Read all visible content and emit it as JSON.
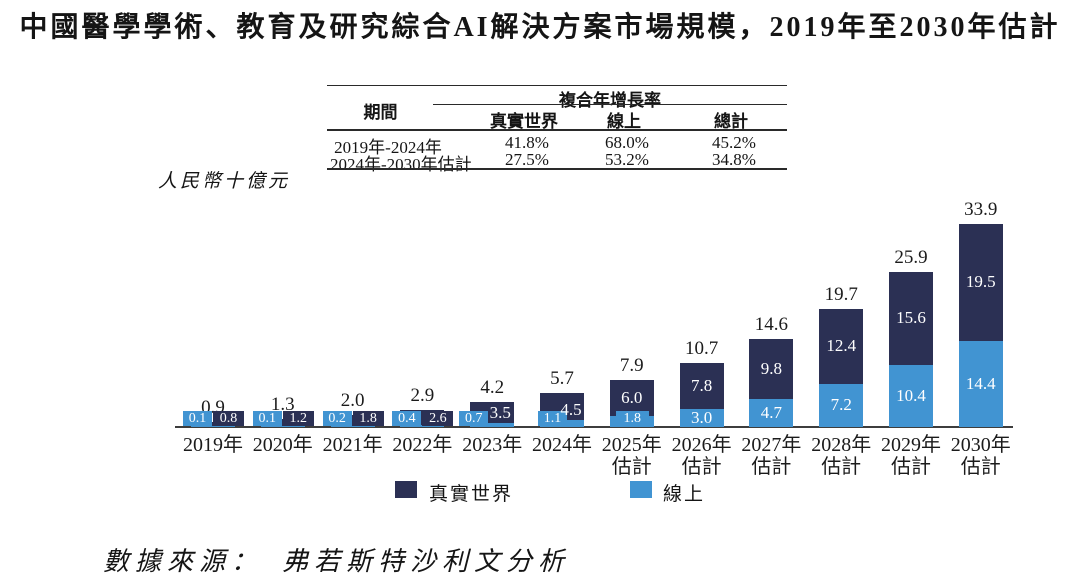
{
  "title": "中國醫學學術、教育及研究綜合AI解決方案市場規模，2019年至2030年估計",
  "table": {
    "period_header": "期間",
    "cagr_header": "複合年增長率",
    "col_headers": [
      "真實世界",
      "線上",
      "總計"
    ],
    "rows": [
      {
        "period": "2019年-2024年",
        "values": [
          "41.8%",
          "68.0%",
          "45.2%"
        ]
      },
      {
        "period": "2024年-2030年估計",
        "values": [
          "27.5%",
          "53.2%",
          "34.8%"
        ]
      }
    ]
  },
  "chart_data": {
    "type": "bar",
    "subtype": "stacked-bar",
    "unit_label": "人民幣十億元",
    "categories": [
      "2019年",
      "2020年",
      "2021年",
      "2022年",
      "2023年",
      "2024年",
      "2025年",
      "2026年",
      "2027年",
      "2028年",
      "2029年",
      "2030年"
    ],
    "category_suffixes": [
      "",
      "",
      "",
      "",
      "",
      "",
      "估計",
      "估計",
      "估計",
      "估計",
      "估計",
      "估計"
    ],
    "totals": [
      0.9,
      1.3,
      2.0,
      2.9,
      4.2,
      5.7,
      7.9,
      10.7,
      14.6,
      19.7,
      25.9,
      33.9
    ],
    "series": [
      {
        "name": "真實世界",
        "color": "#2b3054",
        "values": [
          0.8,
          1.2,
          1.8,
          2.6,
          3.5,
          4.5,
          6.0,
          7.8,
          9.8,
          12.4,
          15.6,
          19.5
        ]
      },
      {
        "name": "線上",
        "color": "#4194d2",
        "values": [
          0.1,
          0.1,
          0.2,
          0.4,
          0.7,
          1.1,
          1.8,
          3.0,
          4.7,
          7.2,
          10.4,
          14.4
        ]
      }
    ],
    "value_label_color": "#ffffff",
    "axis_color": "#3d3d3d",
    "legend_position": "bottom",
    "grid": false
  },
  "legend": {
    "items": [
      {
        "label": "真實世界",
        "color": "#2b3054"
      },
      {
        "label": "線上",
        "color": "#4194d2"
      }
    ]
  },
  "source": "數據來源：　弗若斯特沙利文分析"
}
